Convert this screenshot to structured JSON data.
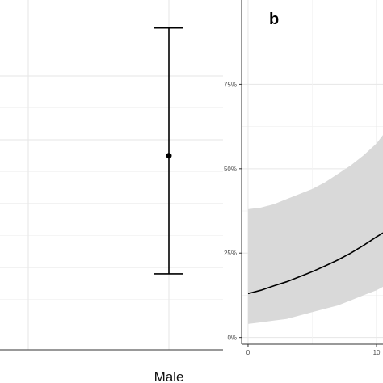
{
  "chart_data": [
    {
      "type": "scatter",
      "categories": [
        "Male"
      ],
      "series": [
        {
          "points": [
            {
              "category": "Male",
              "estimate": 0.55,
              "lower": 0.18,
              "upper": 0.95
            }
          ]
        }
      ],
      "title": "",
      "xlabel": "",
      "ylabel": "",
      "ylim": [
        0.0,
        1.0
      ],
      "grid": true,
      "has_error_bars": true
    },
    {
      "type": "line",
      "panel_label": "b",
      "title": "",
      "xlabel": "",
      "ylabel": "",
      "x_ticks": [
        0,
        10
      ],
      "y_ticks": [
        "0%",
        "25%",
        "50%",
        "75%"
      ],
      "y_tick_values": [
        0,
        0.25,
        0.5,
        0.75
      ],
      "xlim": [
        -0.5,
        10.5
      ],
      "ylim": [
        -0.02,
        1.0
      ],
      "grid": true,
      "series": [
        {
          "x": [
            0,
            1,
            2,
            3,
            4,
            5,
            6,
            7,
            8,
            9,
            10,
            10.5
          ],
          "y": [
            0.13,
            0.14,
            0.153,
            0.165,
            0.18,
            0.195,
            0.212,
            0.23,
            0.25,
            0.273,
            0.298,
            0.31
          ],
          "lower": [
            0.04,
            0.045,
            0.05,
            0.055,
            0.065,
            0.075,
            0.085,
            0.095,
            0.11,
            0.125,
            0.14,
            0.15
          ],
          "upper": [
            0.38,
            0.385,
            0.395,
            0.41,
            0.425,
            0.44,
            0.46,
            0.485,
            0.51,
            0.54,
            0.575,
            0.6
          ]
        }
      ]
    }
  ]
}
